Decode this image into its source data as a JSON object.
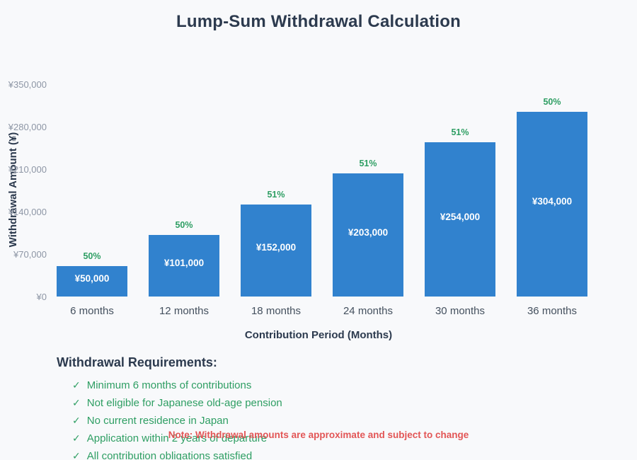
{
  "page_title": "Lump-Sum Withdrawal Calculation",
  "chart_data": {
    "type": "bar",
    "title": "Lump-Sum Withdrawal Calculation",
    "categories": [
      "6 months",
      "12 months",
      "18 months",
      "24 months",
      "30 months",
      "36 months"
    ],
    "values": [
      50000,
      101000,
      152000,
      203000,
      254000,
      304000
    ],
    "bar_value_labels": [
      "¥50,000",
      "¥101,000",
      "¥152,000",
      "¥203,000",
      "¥254,000",
      "¥304,000"
    ],
    "percent_labels": [
      "50%",
      "50%",
      "51%",
      "51%",
      "51%",
      "50%"
    ],
    "xlabel": "Contribution Period (Months)",
    "ylabel": "Withdrawal Amount (¥)",
    "ylim": [
      0,
      350000
    ],
    "yticks": [
      0,
      70000,
      140000,
      210000,
      280000,
      350000
    ],
    "ytick_labels": [
      "¥0",
      "¥70,000",
      "¥140,000",
      "¥210,000",
      "¥280,000",
      "¥350,000"
    ],
    "grid": false,
    "legend": false,
    "bar_color": "#3182ce"
  },
  "requirements": {
    "heading": "Withdrawal Requirements:",
    "check_glyph": "✓",
    "items": [
      "Minimum 6 months of contributions",
      "Not eligible for Japanese old-age pension",
      "No current residence in Japan",
      "Application within 2 years of departure",
      "All contribution obligations satisfied"
    ]
  },
  "note": "Note: Withdrawal amounts are approximate and subject to change",
  "colors": {
    "background": "#f8f9fb",
    "bar": "#3182ce",
    "bar_label": "#ffffff",
    "percent": "#2e9e63",
    "title": "#2c3a4e",
    "y_tick": "#8d96a5",
    "x_tick": "#44505e",
    "requirement": "#2e9e63",
    "note": "#e25555"
  }
}
